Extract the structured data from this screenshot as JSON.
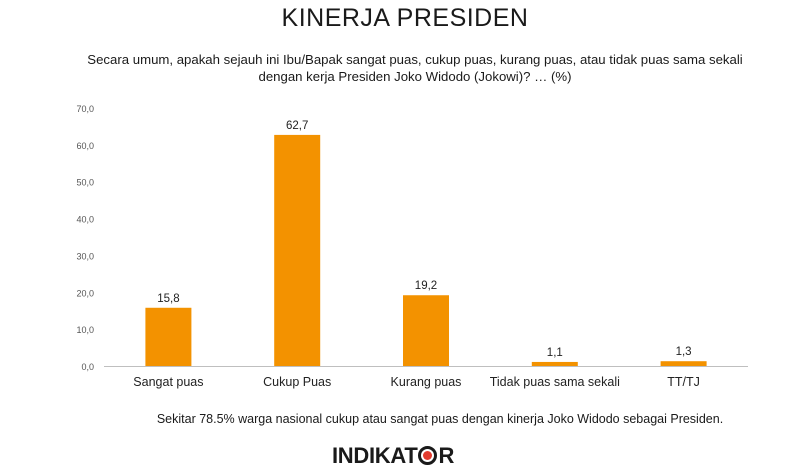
{
  "header": {
    "title": "KINERJA PRESIDEN",
    "question": "Secara umum, apakah sejauh ini Ibu/Bapak sangat puas, cukup puas, kurang puas, atau tidak puas sama sekali dengan kerja Presiden Joko Widodo (Jokowi)? … (%)"
  },
  "chart_data": {
    "type": "bar",
    "categories": [
      "Sangat puas",
      "Cukup Puas",
      "Kurang puas",
      "Tidak puas sama sekali",
      "TT/TJ"
    ],
    "values": [
      15.8,
      62.7,
      19.2,
      1.1,
      1.3
    ],
    "value_labels": [
      "15,8",
      "62,7",
      "19,2",
      "1,1",
      "1,3"
    ],
    "ylim": [
      0,
      70
    ],
    "yticks": [
      "0,0",
      "10,0",
      "20,0",
      "30,0",
      "40,0",
      "50,0",
      "60,0",
      "70,0"
    ],
    "bar_color": "#f39200",
    "axis_color": "#bfbfbf",
    "grid": false,
    "legend": false
  },
  "footer": {
    "note": "Sekitar 78.5% warga nasional cukup atau sangat puas dengan kinerja Joko Widodo sebagai Presiden.",
    "logo_left": "INDIKAT",
    "logo_right": "R"
  }
}
